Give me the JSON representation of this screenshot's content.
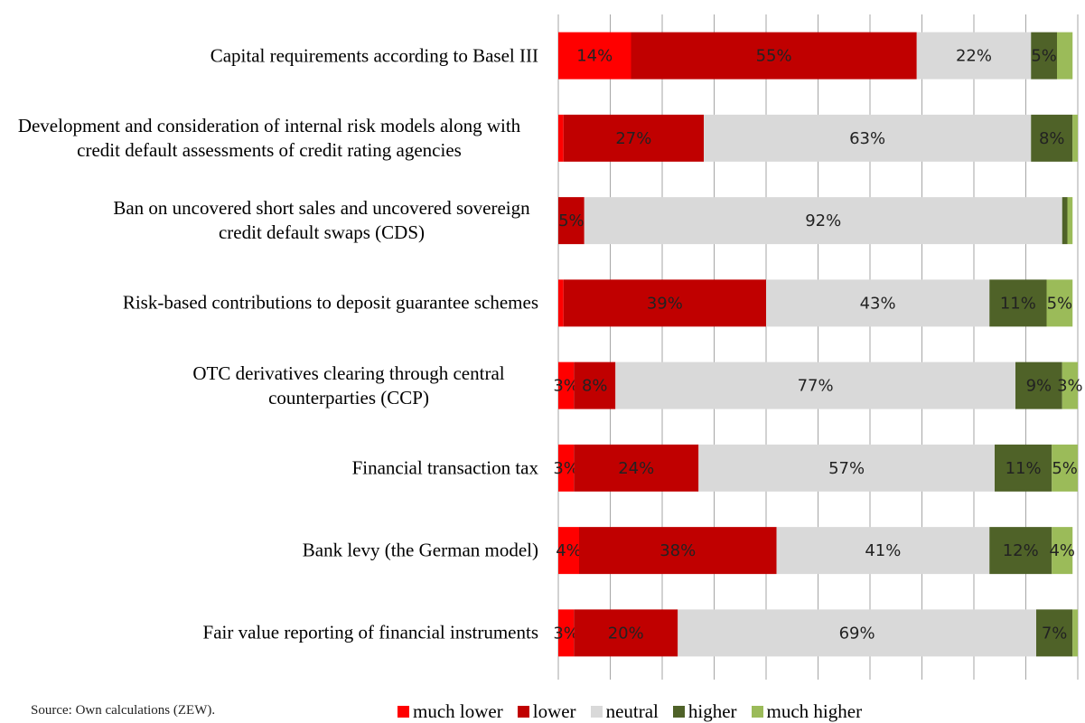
{
  "chart_data": {
    "type": "stacked-barh",
    "categories": [
      "Capital requirements according to Basel III",
      "Development and consideration of internal risk models along with credit default assessments of credit rating agencies",
      "Ban on uncovered short sales and uncovered sovereign credit default swaps (CDS)",
      "Risk-based contributions to deposit guarantee schemes",
      "OTC derivatives clearing through central counterparties (CCP)",
      "Financial transaction tax",
      "Bank levy (the German model)",
      "Fair value reporting of financial instruments"
    ],
    "series": [
      {
        "name": "much lower",
        "color": "#ff0000",
        "values": [
          14,
          1,
          0,
          1,
          3,
          3,
          4,
          3
        ],
        "value_labels": [
          "14%",
          null,
          null,
          null,
          "3%",
          "3%",
          "4%",
          "3%"
        ]
      },
      {
        "name": "lower",
        "color": "#c00000",
        "values": [
          55,
          27,
          5,
          39,
          8,
          24,
          38,
          20
        ],
        "value_labels": [
          "55%",
          "27%",
          "5%",
          "39%",
          "8%",
          "24%",
          "38%",
          "20%"
        ]
      },
      {
        "name": "neutral",
        "color": "#d9d9d9",
        "values": [
          22,
          63,
          92,
          43,
          77,
          57,
          41,
          69
        ],
        "value_labels": [
          "22%",
          "63%",
          "92%",
          "43%",
          "77%",
          "57%",
          "41%",
          "69%"
        ]
      },
      {
        "name": "higher",
        "color": "#4f6228",
        "values": [
          5,
          8,
          1,
          11,
          9,
          11,
          12,
          7
        ],
        "value_labels": [
          "5%",
          "8%",
          null,
          "11%",
          "9%",
          "11%",
          "12%",
          "7%"
        ]
      },
      {
        "name": "much higher",
        "color": "#9bbb59",
        "values": [
          3,
          1,
          1,
          5,
          3,
          5,
          4,
          1
        ],
        "value_labels": [
          null,
          null,
          null,
          "5%",
          "3%",
          "5%",
          "4%",
          null
        ]
      }
    ],
    "xlim": [
      0,
      100
    ],
    "xticks": [
      0,
      10,
      20,
      30,
      40,
      50,
      60,
      70,
      80,
      90,
      100
    ],
    "grid": true,
    "source": "Source: Own calculations (ZEW)."
  }
}
